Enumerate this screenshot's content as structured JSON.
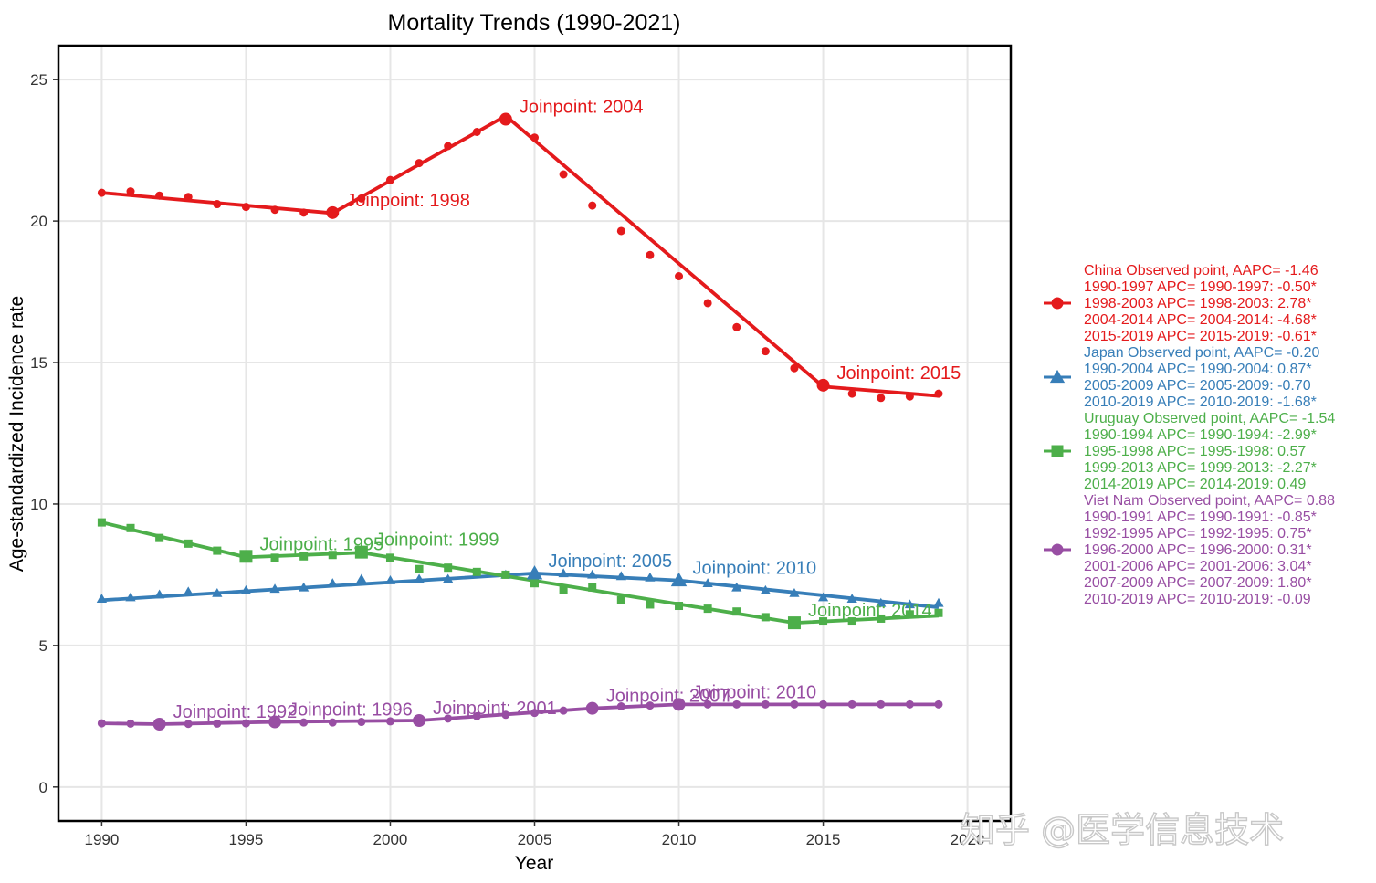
{
  "chart_data": {
    "type": "line",
    "title": "Mortality Trends (1990-2021)",
    "xlabel": "Year",
    "ylabel": "Age-standardized Incidence rate",
    "xlim": [
      1988.5,
      2021.5
    ],
    "ylim": [
      -1.2,
      26.2
    ],
    "x_ticks": [
      1990,
      1995,
      2000,
      2005,
      2010,
      2015,
      2020
    ],
    "y_ticks": [
      0,
      5,
      10,
      15,
      20,
      25
    ],
    "legend_position": "right",
    "series": [
      {
        "name": "China",
        "color": "#e41a1c",
        "marker": "circle",
        "x": [
          1990,
          1991,
          1992,
          1993,
          1994,
          1995,
          1996,
          1997,
          1998,
          1999,
          2000,
          2001,
          2002,
          2003,
          2004,
          2005,
          2006,
          2007,
          2008,
          2009,
          2010,
          2011,
          2012,
          2013,
          2014,
          2015,
          2016,
          2017,
          2018,
          2019
        ],
        "values": [
          21.0,
          21.05,
          20.9,
          20.85,
          20.6,
          20.5,
          20.4,
          20.3,
          20.3,
          20.8,
          21.45,
          22.05,
          22.65,
          23.15,
          23.6,
          22.95,
          21.65,
          20.55,
          19.65,
          18.8,
          18.05,
          17.1,
          16.25,
          15.4,
          14.8,
          14.2,
          13.9,
          13.75,
          13.8,
          13.9
        ],
        "fit_x": [
          1990,
          1998,
          2004,
          2015,
          2019
        ],
        "fit_values": [
          21.0,
          20.28,
          23.72,
          14.15,
          13.82
        ],
        "joinpoints": [
          {
            "label": "Joinpoint: 1998",
            "x": 1998,
            "y": 20.3
          },
          {
            "label": "Joinpoint: 2004",
            "x": 2004,
            "y": 23.6
          },
          {
            "label": "Joinpoint: 2015",
            "x": 2015,
            "y": 14.2
          }
        ],
        "legend_lines": [
          "China Observed point, AAPC= -1.46",
          "1990-1997 APC= 1990-1997: -0.50*",
          "1998-2003 APC= 1998-2003: 2.78*",
          "2004-2014 APC= 2004-2014: -4.68*",
          "2015-2019 APC= 2015-2019: -0.61*"
        ]
      },
      {
        "name": "Japan",
        "color": "#377eb8",
        "marker": "triangle",
        "x": [
          1990,
          1991,
          1992,
          1993,
          1994,
          1995,
          1996,
          1997,
          1998,
          1999,
          2000,
          2001,
          2002,
          2003,
          2004,
          2005,
          2006,
          2007,
          2008,
          2009,
          2010,
          2011,
          2012,
          2013,
          2014,
          2015,
          2016,
          2017,
          2018,
          2019
        ],
        "values": [
          6.65,
          6.7,
          6.8,
          6.9,
          6.85,
          6.95,
          7.0,
          7.05,
          7.2,
          7.35,
          7.3,
          7.35,
          7.35,
          7.55,
          7.5,
          7.55,
          7.55,
          7.5,
          7.45,
          7.4,
          7.3,
          7.2,
          7.05,
          6.95,
          6.85,
          6.7,
          6.65,
          6.5,
          6.45,
          6.5
        ],
        "fit_x": [
          1990,
          2005,
          2010,
          2019
        ],
        "fit_values": [
          6.6,
          7.55,
          7.3,
          6.35
        ],
        "joinpoints": [
          {
            "label": "Joinpoint: 2005",
            "x": 2005,
            "y": 7.55
          },
          {
            "label": "Joinpoint: 2010",
            "x": 2010,
            "y": 7.3
          }
        ],
        "legend_lines": [
          "Japan Observed point, AAPC= -0.20",
          "1990-2004 APC= 1990-2004: 0.87*",
          "2005-2009 APC= 2005-2009: -0.70",
          "2010-2019 APC= 2010-2019: -1.68*"
        ]
      },
      {
        "name": "Uruguay",
        "color": "#4daf4a",
        "marker": "square",
        "x": [
          1990,
          1991,
          1992,
          1993,
          1994,
          1995,
          1996,
          1997,
          1998,
          1999,
          2000,
          2001,
          2002,
          2003,
          2004,
          2005,
          2006,
          2007,
          2008,
          2009,
          2010,
          2011,
          2012,
          2013,
          2014,
          2015,
          2016,
          2017,
          2018,
          2019
        ],
        "values": [
          9.35,
          9.15,
          8.8,
          8.6,
          8.35,
          8.15,
          8.1,
          8.15,
          8.2,
          8.3,
          8.1,
          7.7,
          7.75,
          7.6,
          7.5,
          7.2,
          6.95,
          7.05,
          6.6,
          6.45,
          6.4,
          6.3,
          6.2,
          6.0,
          5.8,
          5.85,
          5.85,
          5.95,
          6.1,
          6.15
        ],
        "fit_x": [
          1990,
          1995,
          1999,
          2014,
          2019
        ],
        "fit_values": [
          9.35,
          8.12,
          8.28,
          5.8,
          6.05
        ],
        "joinpoints": [
          {
            "label": "Joinpoint: 1995",
            "x": 1995,
            "y": 8.15
          },
          {
            "label": "Joinpoint: 1999",
            "x": 1999,
            "y": 8.3
          },
          {
            "label": "Joinpoint: 2014",
            "x": 2014,
            "y": 5.8
          }
        ],
        "legend_lines": [
          "Uruguay Observed point, AAPC= -1.54",
          "1990-1994 APC= 1990-1994: -2.99*",
          "1995-1998 APC= 1995-1998: 0.57",
          "1999-2013 APC= 1999-2013: -2.27*",
          "2014-2019 APC= 2014-2019: 0.49"
        ]
      },
      {
        "name": "Viet Nam",
        "color": "#984ea3",
        "marker": "circle",
        "x": [
          1990,
          1991,
          1992,
          1993,
          1994,
          1995,
          1996,
          1997,
          1998,
          1999,
          2000,
          2001,
          2002,
          2003,
          2004,
          2005,
          2006,
          2007,
          2008,
          2009,
          2010,
          2011,
          2012,
          2013,
          2014,
          2015,
          2016,
          2017,
          2018,
          2019
        ],
        "values": [
          2.25,
          2.24,
          2.22,
          2.23,
          2.24,
          2.25,
          2.28,
          2.28,
          2.28,
          2.3,
          2.32,
          2.35,
          2.42,
          2.5,
          2.55,
          2.62,
          2.7,
          2.78,
          2.85,
          2.88,
          2.92,
          2.92,
          2.92,
          2.92,
          2.92,
          2.92,
          2.92,
          2.92,
          2.92,
          2.92
        ],
        "fit_x": [
          1990,
          1992,
          1996,
          2001,
          2007,
          2010,
          2019
        ],
        "fit_values": [
          2.25,
          2.22,
          2.3,
          2.35,
          2.78,
          2.92,
          2.92
        ],
        "joinpoints": [
          {
            "label": "Joinpoint: 1992",
            "x": 1992,
            "y": 2.22
          },
          {
            "label": "Joinpoint: 1996",
            "x": 1996,
            "y": 2.3
          },
          {
            "label": "Joinpoint: 2001",
            "x": 2001,
            "y": 2.35
          },
          {
            "label": "Joinpoint: 2007",
            "x": 2007,
            "y": 2.78
          },
          {
            "label": "Joinpoint: 2010",
            "x": 2010,
            "y": 2.92
          }
        ],
        "legend_lines": [
          "Viet Nam Observed point, AAPC= 0.88",
          "1990-1991 APC= 1990-1991: -0.85*",
          "1992-1995 APC= 1992-1995: 0.75*",
          "1996-2000 APC= 1996-2000: 0.31*",
          "2001-2006 APC= 2001-2006: 3.04*",
          "2007-2009 APC= 2007-2009: 1.80*",
          "2010-2019 APC= 2010-2019: -0.09"
        ]
      }
    ]
  },
  "watermark": "知乎 @医学信息技术"
}
